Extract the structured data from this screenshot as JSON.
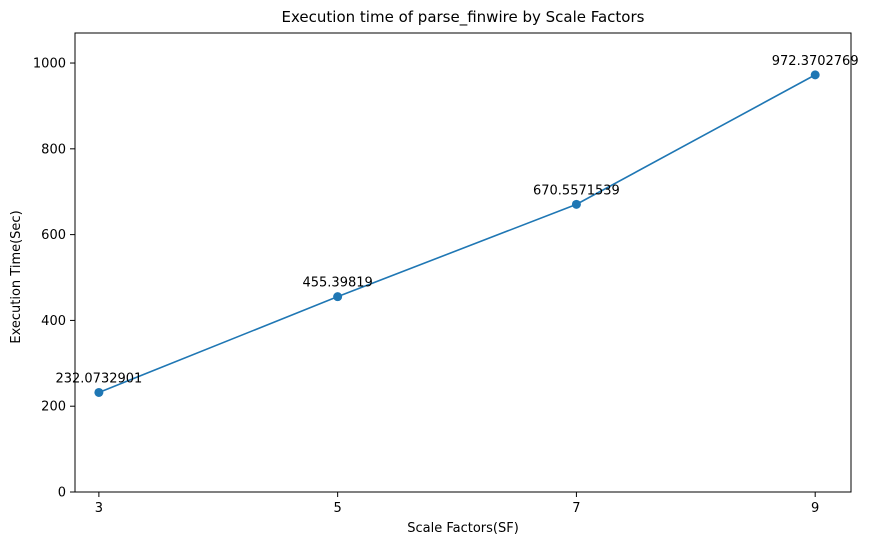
{
  "chart_data": {
    "type": "line",
    "title": "Execution time of parse_finwire by Scale Factors",
    "xlabel": "Scale Factors(SF)",
    "ylabel": "Execution Time(Sec)",
    "x": [
      3,
      5,
      7,
      9
    ],
    "xticks": [
      "3",
      "5",
      "7",
      "9"
    ],
    "xlim": [
      2.8,
      9.3
    ],
    "ylim": [
      0,
      1070
    ],
    "yticks": [
      0,
      200,
      400,
      600,
      800,
      1000
    ],
    "series": [
      {
        "values": [
          232.0732901,
          455.39819,
          670.5571539,
          972.3702769
        ],
        "labels": [
          "232.0732901",
          "455.39819",
          "670.5571539",
          "972.3702769"
        ],
        "color": "#1f77b4",
        "marker": "circle"
      }
    ],
    "grid": false,
    "legend": "none"
  }
}
